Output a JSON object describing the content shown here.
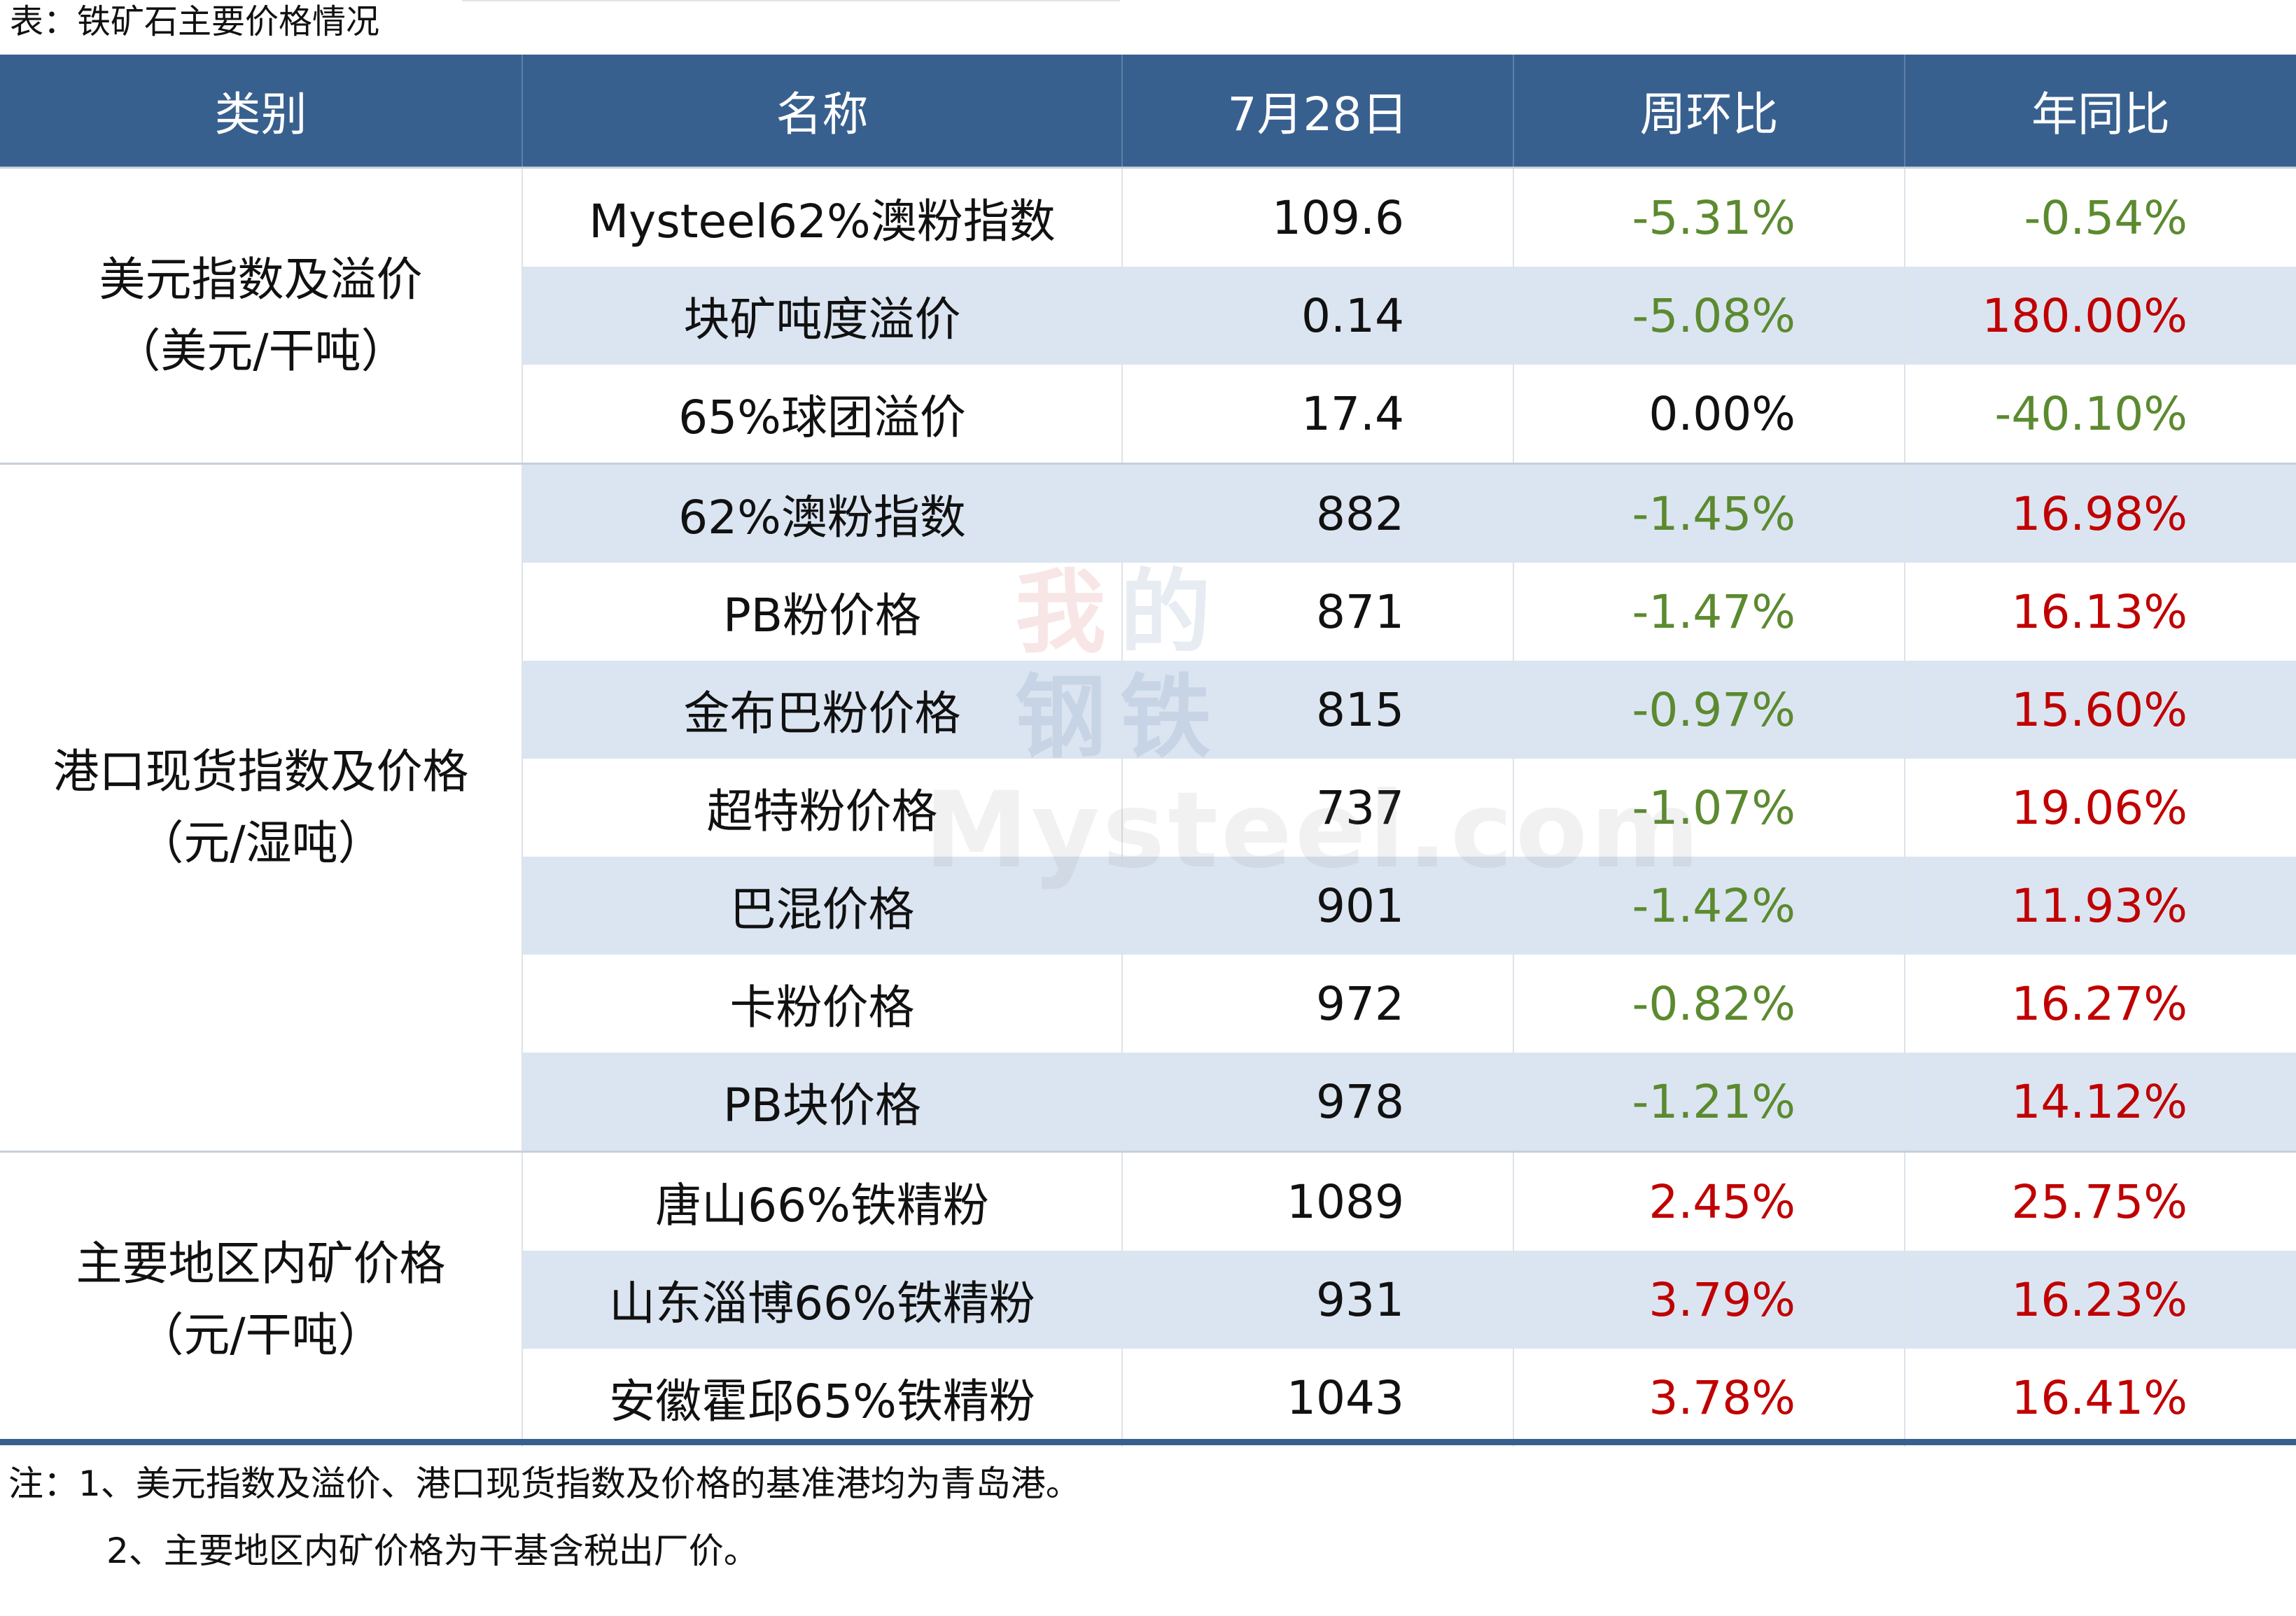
{
  "caption": "表：铁矿石主要价格情况",
  "headers": [
    "类别",
    "名称",
    "7月28日",
    "周环比",
    "年同比"
  ],
  "groups": [
    {
      "category_line1": "美元指数及溢价",
      "category_line2": "（美元/干吨）",
      "rows": [
        {
          "name": "Mysteel62%澳粉指数",
          "value": "109.6",
          "wow": "-5.31%",
          "yoy": "-0.54%"
        },
        {
          "name": "块矿吨度溢价",
          "value": "0.14",
          "wow": "-5.08%",
          "yoy": "180.00%"
        },
        {
          "name": "65%球团溢价",
          "value": "17.4",
          "wow": "0.00%",
          "yoy": "-40.10%"
        }
      ]
    },
    {
      "category_line1": "港口现货指数及价格",
      "category_line2": "（元/湿吨）",
      "rows": [
        {
          "name": "62%澳粉指数",
          "value": "882",
          "wow": "-1.45%",
          "yoy": "16.98%"
        },
        {
          "name": "PB粉价格",
          "value": "871",
          "wow": "-1.47%",
          "yoy": "16.13%"
        },
        {
          "name": "金布巴粉价格",
          "value": "815",
          "wow": "-0.97%",
          "yoy": "15.60%"
        },
        {
          "name": "超特粉价格",
          "value": "737",
          "wow": "-1.07%",
          "yoy": "19.06%"
        },
        {
          "name": "巴混价格",
          "value": "901",
          "wow": "-1.42%",
          "yoy": "11.93%"
        },
        {
          "name": "卡粉价格",
          "value": "972",
          "wow": "-0.82%",
          "yoy": "16.27%"
        },
        {
          "name": "PB块价格",
          "value": "978",
          "wow": "-1.21%",
          "yoy": "14.12%"
        }
      ]
    },
    {
      "category_line1": "主要地区内矿价格",
      "category_line2": "（元/干吨）",
      "rows": [
        {
          "name": "唐山66%铁精粉",
          "value": "1089",
          "wow": "2.45%",
          "yoy": "25.75%"
        },
        {
          "name": "山东淄博66%铁精粉",
          "value": "931",
          "wow": "3.79%",
          "yoy": "16.23%"
        },
        {
          "name": "安徽霍邱65%铁精粉",
          "value": "1043",
          "wow": "3.78%",
          "yoy": "16.41%"
        }
      ]
    }
  ],
  "notes": [
    "注：1、美元指数及溢价、港口现货指数及价格的基准港均为青岛港。",
    "2、主要地区内矿价格为干基含税出厂价。"
  ],
  "watermark": {
    "chars": [
      "我",
      "的",
      "钢",
      "铁"
    ],
    "text": "Mysteel.com"
  },
  "colors": {
    "header_bg": "#38608f",
    "band_bg": "#dbe5f1",
    "negative": "#5b8a2f",
    "positive": "#c00000"
  }
}
